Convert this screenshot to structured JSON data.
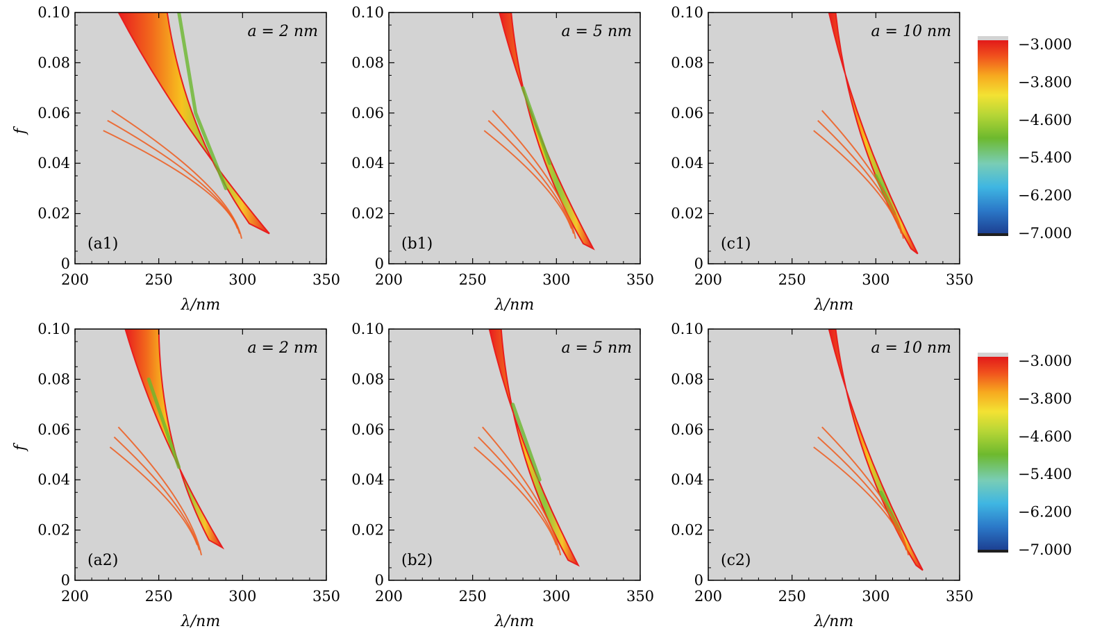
{
  "chart_data": {
    "type": "heatmap",
    "xlim": [
      200,
      350
    ],
    "ylim": [
      0,
      0.1
    ],
    "x_ticks": [
      "200",
      "250",
      "300",
      "350"
    ],
    "y_ticks": [
      "0",
      "0.02",
      "0.04",
      "0.06",
      "0.08",
      "0.10"
    ],
    "background_color": "#d3d3d3",
    "grid": false,
    "colorbar": {
      "ticks": [
        "−3.000",
        "−3.800",
        "−4.600",
        "−5.400",
        "−6.200",
        "−7.000"
      ],
      "range": [
        -7,
        -3
      ],
      "colors": [
        "#1f1f1f",
        "#1b3f96",
        "#2aa8e0",
        "#5cc9b8",
        "#6bb82e",
        "#d9e030",
        "#f5b21e",
        "#f06a1e",
        "#e81e1e"
      ]
    },
    "panels": [
      {
        "label": "(a1)",
        "annotation": "a = 2 nm",
        "xlabel": "λ/nm",
        "ylabel": "f",
        "band": {
          "top": [
            [
              226,
              0.1
            ],
            [
              255,
              0.1
            ]
          ],
          "bottom": [
            [
              316,
              0.012
            ],
            [
              304,
              0.016
            ]
          ],
          "core": [
            [
              262,
              0.1
            ],
            [
              272,
              0.06
            ],
            [
              290,
              0.03
            ]
          ]
        }
      },
      {
        "label": "(b1)",
        "annotation": "a = 5 nm",
        "xlabel": "λ/nm",
        "ylabel": "",
        "band": {
          "top": [
            [
              266,
              0.1
            ],
            [
              273,
              0.1
            ]
          ],
          "bottom": [
            [
              322,
              0.006
            ],
            [
              316,
              0.008
            ]
          ],
          "core": [
            [
              280,
              0.07
            ],
            [
              296,
              0.04
            ]
          ]
        }
      },
      {
        "label": "(c1)",
        "annotation": "a = 10 nm",
        "xlabel": "λ/nm",
        "ylabel": "",
        "band": {
          "top": [
            [
              272,
              0.1
            ],
            [
              276,
              0.1
            ]
          ],
          "bottom": [
            [
              325,
              0.004
            ],
            [
              321,
              0.006
            ]
          ],
          "core": [
            [
              300,
              0.035
            ],
            [
              311,
              0.02
            ]
          ]
        }
      },
      {
        "label": "(a2)",
        "annotation": "a = 2 nm",
        "xlabel": "λ/nm",
        "ylabel": "f",
        "band": {
          "top": [
            [
              230,
              0.1
            ],
            [
              250,
              0.1
            ]
          ],
          "bottom": [
            [
              288,
              0.013
            ],
            [
              280,
              0.016
            ]
          ],
          "core": [
            [
              244,
              0.08
            ],
            [
              262,
              0.045
            ]
          ]
        }
      },
      {
        "label": "(b2)",
        "annotation": "a = 5 nm",
        "xlabel": "λ/nm",
        "ylabel": "",
        "band": {
          "top": [
            [
              260,
              0.1
            ],
            [
              267,
              0.1
            ]
          ],
          "bottom": [
            [
              313,
              0.006
            ],
            [
              307,
              0.008
            ]
          ],
          "core": [
            [
              274,
              0.07
            ],
            [
              290,
              0.04
            ]
          ]
        }
      },
      {
        "label": "(c2)",
        "annotation": "a = 10 nm",
        "xlabel": "λ/nm",
        "ylabel": "",
        "band": {
          "top": [
            [
              272,
              0.1
            ],
            [
              276,
              0.1
            ]
          ],
          "bottom": [
            [
              328,
              0.004
            ],
            [
              324,
              0.006
            ]
          ],
          "core": [
            [
              303,
              0.035
            ],
            [
              314,
              0.02
            ]
          ]
        }
      }
    ]
  }
}
